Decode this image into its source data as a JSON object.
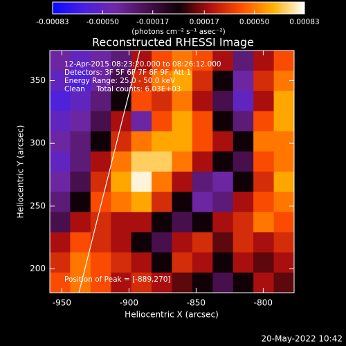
{
  "chart_data": {
    "type": "heatmap",
    "title": "Reconstructed RHESSI Image",
    "x_label": "Heliocentric X (arcsec)",
    "y_label": "Heliocentric Y (arcsec)",
    "xlim": [
      -959,
      -777
    ],
    "ylim": [
      181,
      374
    ],
    "xticks": [
      -950,
      -900,
      -850,
      -800
    ],
    "yticks": [
      200,
      250,
      300,
      350
    ],
    "colormap": [
      "#0a0aff",
      "#4a20e0",
      "#7028a8",
      "#4a1050",
      "#100008",
      "#b01010",
      "#ff5000",
      "#ffb000",
      "#ffffff"
    ],
    "colorbar": {
      "label": "(photons cm⁻² s⁻¹ asec⁻²)",
      "range": [
        -0.00083,
        0.00083
      ],
      "ticks": [
        -0.00083,
        {
          "value": -0.0005,
          "label": "-0.00050"
        },
        -0.00017,
        0.00017,
        {
          "value": 0.0005,
          "label": "0.00050"
        },
        0.00083
      ]
    },
    "annotations": [
      "12-Apr-2015 08:23:20.000 to 08:26:12.000",
      "Detectors: 3F 5F 6F 7F 8F 9F, Att 1",
      "Energy Range: 25.0 - 50.0 keV",
      "Clean     Total counts: 6.03E+03"
    ],
    "peak_label": "Position of Peak = [-889,270]",
    "timestamp": "20-May-2022 10:42",
    "z": [
      [
        -0.0004,
        -0.0005,
        -0.0004,
        -0.0003,
        0.0002,
        0.0004,
        0.0005,
        0.0004,
        0.0002,
        -0.0003,
        0.0002,
        0.0004
      ],
      [
        -0.0005,
        -0.0006,
        -0.0004,
        -0.0002,
        0.0003,
        0.0005,
        0.0006,
        0.0003,
        0,
        -0.0004,
        0.0003,
        0.0005
      ],
      [
        -0.0006,
        -0.0005,
        -0.0003,
        0,
        0.0004,
        0.0003,
        0.0005,
        0.0002,
        -0.0002,
        -0.0005,
        0.0002,
        0.0006
      ],
      [
        -0.0005,
        -0.0004,
        -0.0002,
        0.0002,
        -0.0004,
        0.0004,
        0.0006,
        0.0004,
        0,
        -0.0003,
        0.0004,
        0.0006
      ],
      [
        -0.0004,
        -0.0003,
        0,
        0.0003,
        0.0005,
        0.0006,
        0.0006,
        0.0004,
        0.0002,
        0,
        0.0005,
        0.0005
      ],
      [
        -0.0005,
        -0.0003,
        0.0002,
        0.0005,
        0.0007,
        0.0007,
        0.0005,
        0.0002,
        0,
        -0.0002,
        0.0004,
        0.0005
      ],
      [
        -0.0004,
        -0.0002,
        0.0003,
        0.0006,
        0.0008,
        0.0005,
        0.0002,
        -0.0003,
        -0.0004,
        0,
        0.0003,
        0.0006
      ],
      [
        -0.0003,
        0,
        0.0004,
        0.0005,
        0.0006,
        0.0003,
        0,
        -0.0004,
        -0.0003,
        0.0002,
        0.0004,
        0.0005
      ],
      [
        -0.0002,
        0.0002,
        0.0003,
        0.0002,
        0.0002,
        0,
        -0.0002,
        0,
        0.0002,
        0.0003,
        0.0005,
        0.0004
      ],
      [
        0.0002,
        0.0004,
        0.0003,
        0.0002,
        0,
        -0.0002,
        0.0002,
        0.0003,
        0.0001,
        0.0003,
        0.0002,
        0.0003
      ],
      [
        0.0003,
        0.0005,
        0.0004,
        0.0003,
        0.0002,
        0,
        0.0003,
        0.0002,
        0,
        0.0002,
        0.0001,
        0.0002
      ],
      [
        0.0004,
        0.0005,
        0.0004,
        0.0002,
        0.0003,
        0.0002,
        0.0001,
        0,
        -0.0002,
        0,
        0.0002,
        0.0001
      ]
    ]
  }
}
